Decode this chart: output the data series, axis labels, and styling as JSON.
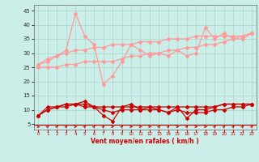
{
  "xlabel": "Vent moyen/en rafales ( km/h )",
  "bg_color": "#cceee8",
  "grid_color": "#aad4cc",
  "light_pink": "#ff9999",
  "dark_red": "#cc0000",
  "ylim": [
    3,
    47
  ],
  "yticks": [
    5,
    10,
    15,
    20,
    25,
    30,
    35,
    40,
    45
  ],
  "line1_v": [
    26,
    27,
    29,
    31,
    44,
    36,
    33,
    19,
    22,
    27,
    33,
    31,
    29,
    30,
    29,
    31,
    29,
    30,
    39,
    35,
    37,
    35,
    35,
    37
  ],
  "line2_v": [
    26,
    28,
    29,
    30,
    31,
    31,
    32,
    32,
    33,
    33,
    33,
    34,
    34,
    34,
    35,
    35,
    35,
    36,
    36,
    36,
    36,
    36,
    36,
    37
  ],
  "line3_v": [
    25,
    25,
    25,
    26,
    26,
    27,
    27,
    27,
    27,
    28,
    29,
    29,
    30,
    30,
    31,
    31,
    32,
    32,
    33,
    33,
    34,
    35,
    36,
    37
  ],
  "line4_v": [
    8,
    11,
    11,
    12,
    12,
    13,
    11,
    8,
    6,
    11,
    12,
    10,
    11,
    10,
    9,
    11,
    7,
    10,
    10,
    11,
    12,
    12,
    12,
    12
  ],
  "line5_v": [
    8,
    10,
    11,
    12,
    12,
    11,
    11,
    11,
    11,
    11,
    11,
    11,
    11,
    11,
    11,
    11,
    11,
    11,
    11,
    11,
    12,
    12,
    12,
    12
  ],
  "line6_v": [
    8,
    10,
    11,
    11,
    12,
    12,
    11,
    10,
    9,
    10,
    10,
    10,
    10,
    10,
    9,
    10,
    9,
    9,
    9,
    10,
    10,
    11,
    11,
    12
  ],
  "arrow_dirs": [
    0,
    1,
    1,
    1,
    0,
    1,
    1,
    1,
    0,
    1,
    0,
    0,
    0,
    1,
    1,
    0,
    1,
    0,
    0,
    1,
    1,
    1,
    1,
    1
  ]
}
